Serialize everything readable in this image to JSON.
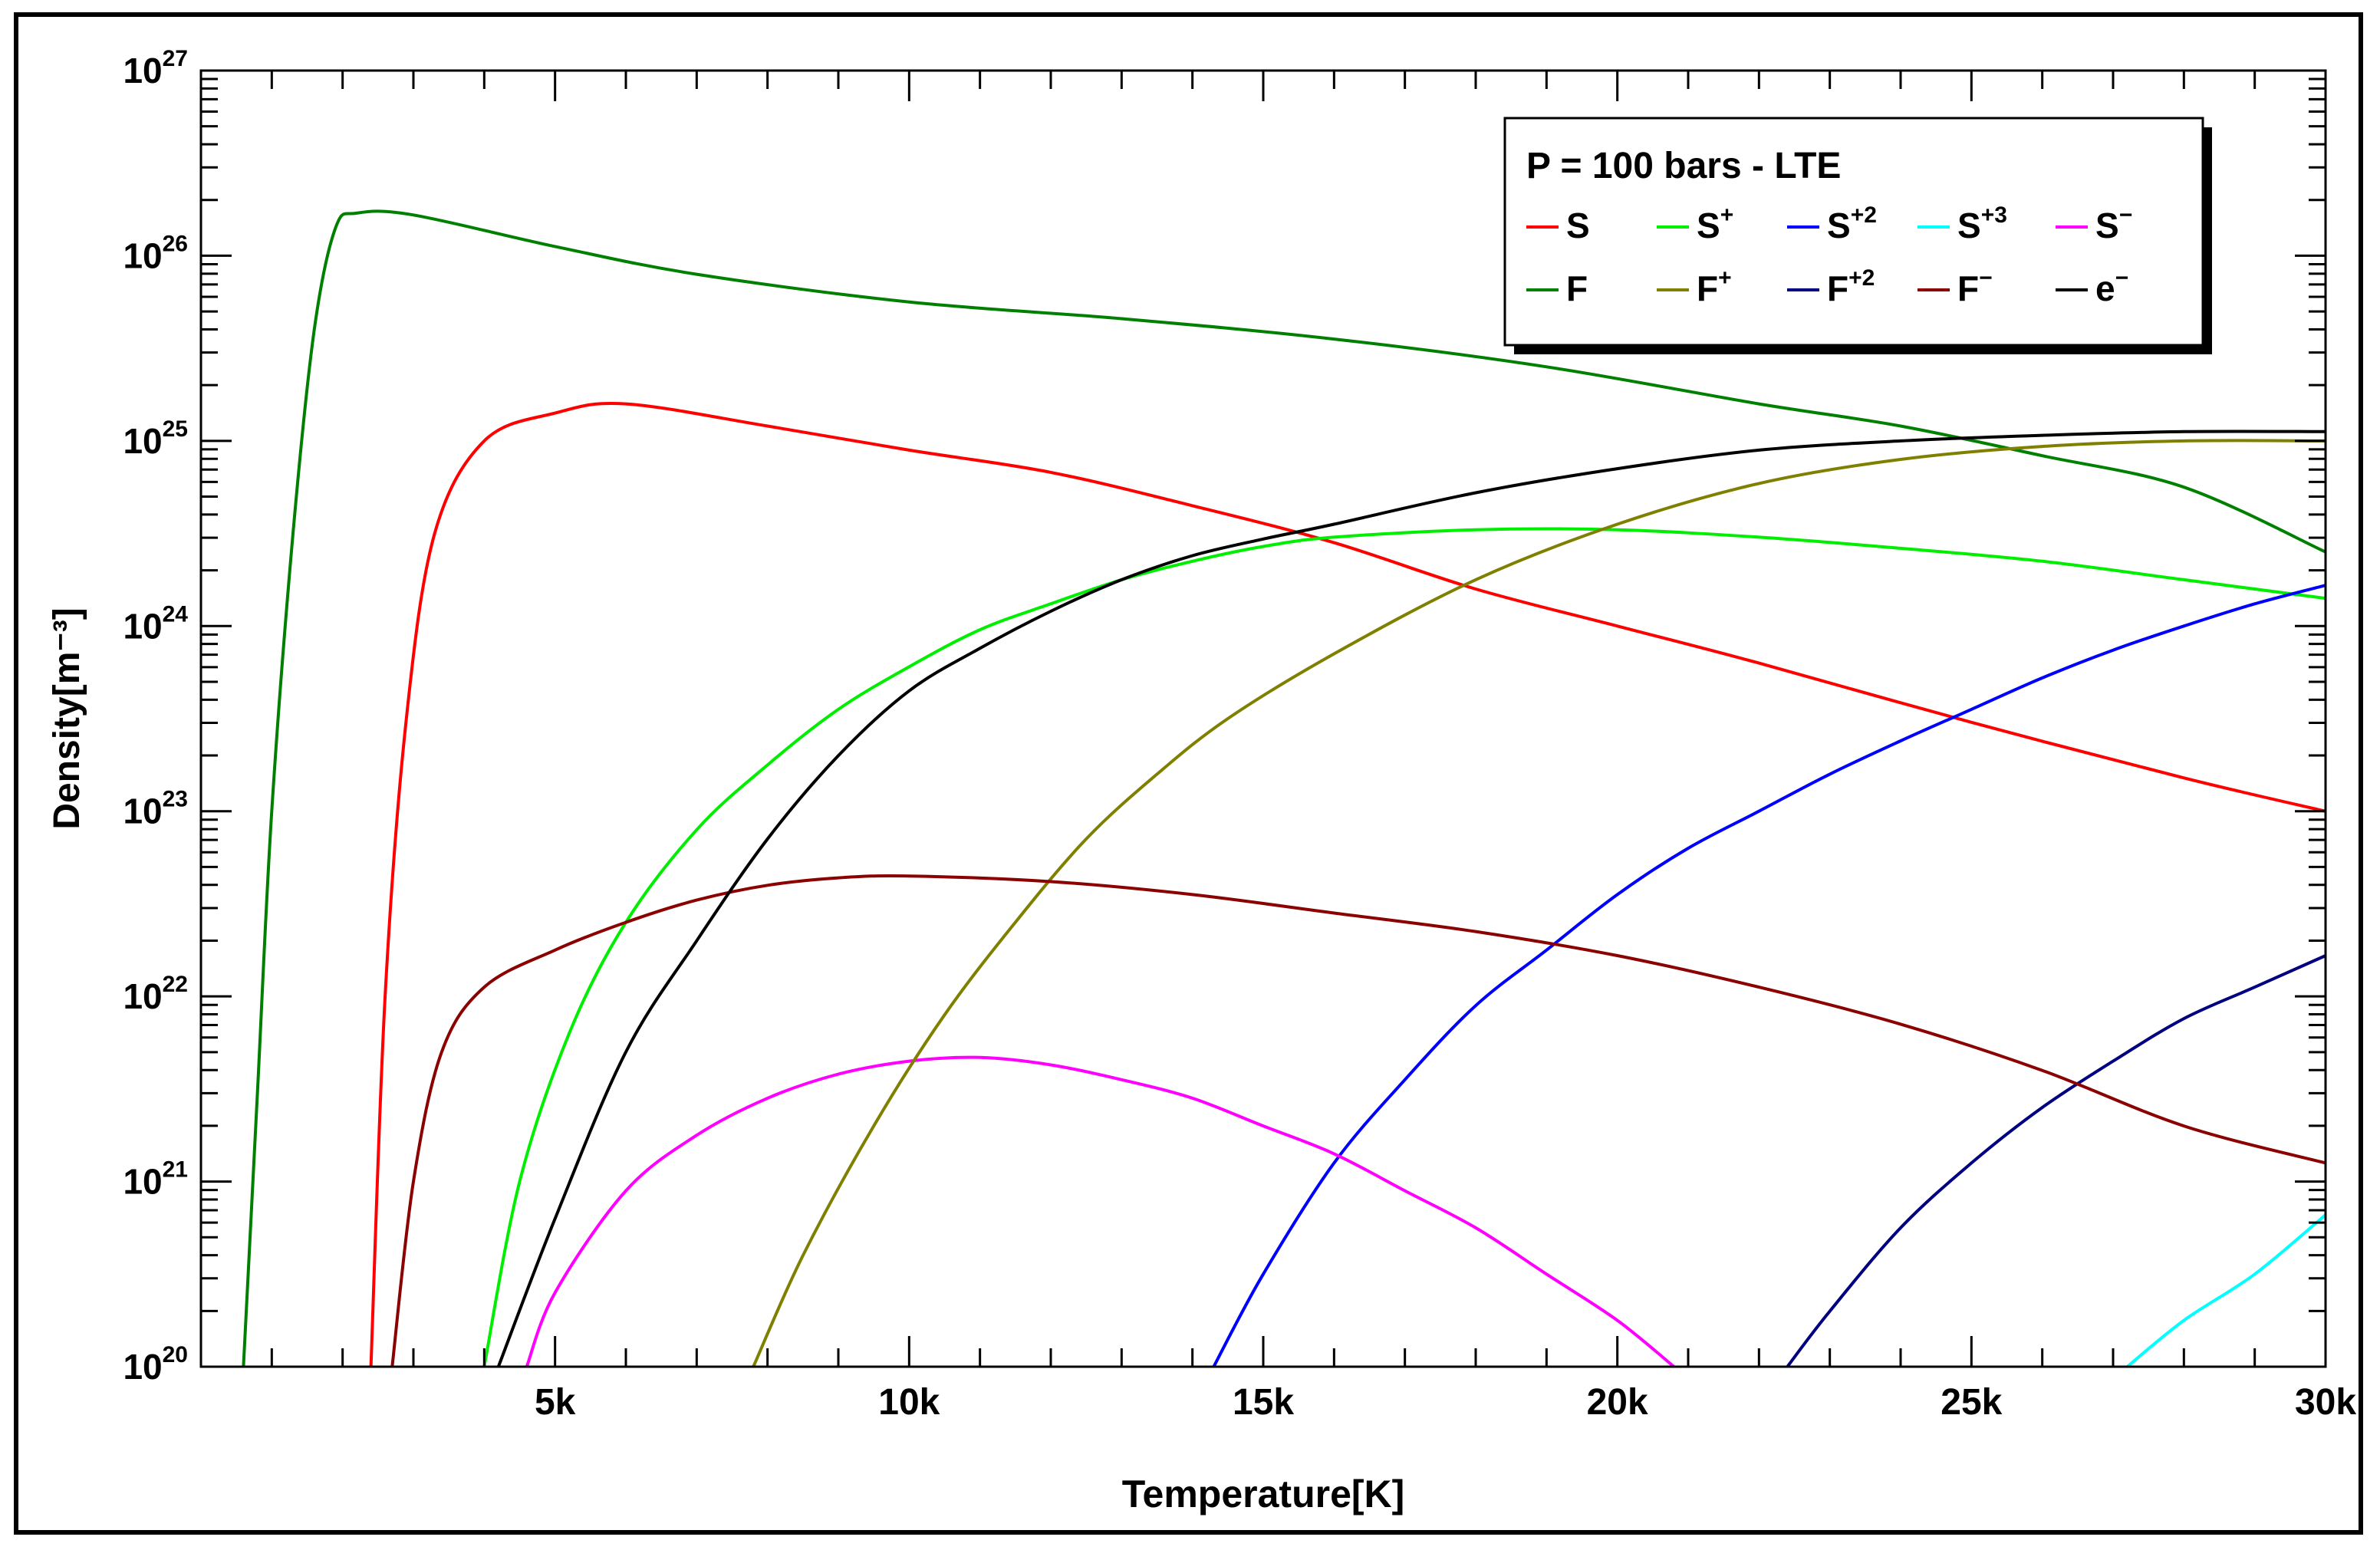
{
  "chart_data": {
    "type": "line",
    "title": "",
    "xlabel": "Temperature[K]",
    "ylabel": "Density[m⁻³]",
    "xlim": [
      0,
      30000
    ],
    "ylim_log10": [
      20,
      27
    ],
    "x_ticks": [
      {
        "value": 5000,
        "label": "5k"
      },
      {
        "value": 10000,
        "label": "10k"
      },
      {
        "value": 15000,
        "label": "15k"
      },
      {
        "value": 20000,
        "label": "20k"
      },
      {
        "value": 25000,
        "label": "25k"
      },
      {
        "value": 30000,
        "label": "30k"
      }
    ],
    "y_ticks": [
      {
        "exp": 20,
        "base": "10",
        "sup": "20"
      },
      {
        "exp": 21,
        "base": "10",
        "sup": "21"
      },
      {
        "exp": 22,
        "base": "10",
        "sup": "22"
      },
      {
        "exp": 23,
        "base": "10",
        "sup": "23"
      },
      {
        "exp": 24,
        "base": "10",
        "sup": "24"
      },
      {
        "exp": 25,
        "base": "10",
        "sup": "25"
      },
      {
        "exp": 26,
        "base": "10",
        "sup": "26"
      },
      {
        "exp": 27,
        "base": "10",
        "sup": "27"
      }
    ],
    "legend": {
      "title": "P = 100 bars - LTE",
      "position": "top-right"
    },
    "series": [
      {
        "name": "S",
        "base": "S",
        "sup": "",
        "color": "#ff0000",
        "points": [
          [
            2400,
            20
          ],
          [
            2600,
            22
          ],
          [
            2900,
            23.5
          ],
          [
            3300,
            24.5
          ],
          [
            4000,
            25.0
          ],
          [
            5000,
            25.15
          ],
          [
            6000,
            25.2
          ],
          [
            8000,
            25.08
          ],
          [
            10000,
            24.95
          ],
          [
            12000,
            24.83
          ],
          [
            14000,
            24.65
          ],
          [
            16000,
            24.45
          ],
          [
            18000,
            24.2
          ],
          [
            20000,
            24.0
          ],
          [
            22000,
            23.8
          ],
          [
            25000,
            23.48
          ],
          [
            28000,
            23.18
          ],
          [
            30000,
            23.0
          ]
        ]
      },
      {
        "name": "S+",
        "base": "S",
        "sup": "+",
        "color": "#00ee00",
        "points": [
          [
            4000,
            20
          ],
          [
            4500,
            21
          ],
          [
            5200,
            21.8
          ],
          [
            6000,
            22.4
          ],
          [
            7000,
            22.9
          ],
          [
            8000,
            23.25
          ],
          [
            9000,
            23.55
          ],
          [
            10000,
            23.78
          ],
          [
            11000,
            23.98
          ],
          [
            12000,
            24.12
          ],
          [
            13000,
            24.25
          ],
          [
            14000,
            24.35
          ],
          [
            15000,
            24.43
          ],
          [
            16000,
            24.48
          ],
          [
            18000,
            24.52
          ],
          [
            20000,
            24.52
          ],
          [
            22000,
            24.48
          ],
          [
            24000,
            24.42
          ],
          [
            26000,
            24.35
          ],
          [
            28000,
            24.25
          ],
          [
            30000,
            24.15
          ]
        ]
      },
      {
        "name": "S+2",
        "base": "S",
        "sup": "+2",
        "color": "#0000ff",
        "points": [
          [
            14300,
            20
          ],
          [
            15000,
            20.5
          ],
          [
            16000,
            21.1
          ],
          [
            17000,
            21.55
          ],
          [
            18000,
            21.95
          ],
          [
            19000,
            22.25
          ],
          [
            20000,
            22.55
          ],
          [
            21000,
            22.8
          ],
          [
            22000,
            23.0
          ],
          [
            23000,
            23.2
          ],
          [
            24000,
            23.38
          ],
          [
            25000,
            23.55
          ],
          [
            26000,
            23.72
          ],
          [
            27000,
            23.87
          ],
          [
            28000,
            24.0
          ],
          [
            29000,
            24.12
          ],
          [
            30000,
            24.22
          ]
        ]
      },
      {
        "name": "S+3",
        "base": "S",
        "sup": "+3",
        "color": "#00ffff",
        "points": [
          [
            27200,
            20
          ],
          [
            28000,
            20.25
          ],
          [
            29000,
            20.5
          ],
          [
            30000,
            20.82
          ]
        ]
      },
      {
        "name": "S-",
        "base": "S",
        "sup": "−",
        "color": "#ff00ff",
        "points": [
          [
            4600,
            20
          ],
          [
            5000,
            20.4
          ],
          [
            6000,
            20.95
          ],
          [
            7000,
            21.25
          ],
          [
            8000,
            21.45
          ],
          [
            9000,
            21.58
          ],
          [
            10000,
            21.65
          ],
          [
            11000,
            21.67
          ],
          [
            12000,
            21.63
          ],
          [
            13000,
            21.55
          ],
          [
            14000,
            21.45
          ],
          [
            15000,
            21.3
          ],
          [
            16000,
            21.15
          ],
          [
            17000,
            20.95
          ],
          [
            18000,
            20.75
          ],
          [
            19000,
            20.5
          ],
          [
            20000,
            20.25
          ],
          [
            20800,
            20
          ]
        ]
      },
      {
        "name": "F",
        "base": "F",
        "sup": "",
        "color": "#008000",
        "points": [
          [
            600,
            20
          ],
          [
            800,
            21.5
          ],
          [
            1000,
            23.0
          ],
          [
            1300,
            24.5
          ],
          [
            1600,
            25.6
          ],
          [
            1900,
            26.15
          ],
          [
            2200,
            26.23
          ],
          [
            3000,
            26.22
          ],
          [
            5000,
            26.05
          ],
          [
            7000,
            25.9
          ],
          [
            10000,
            25.75
          ],
          [
            13000,
            25.66
          ],
          [
            16000,
            25.55
          ],
          [
            19000,
            25.4
          ],
          [
            22000,
            25.2
          ],
          [
            24000,
            25.08
          ],
          [
            26000,
            24.92
          ],
          [
            28000,
            24.75
          ],
          [
            30000,
            24.4
          ]
        ]
      },
      {
        "name": "F+",
        "base": "F",
        "sup": "+",
        "color": "#808000",
        "points": [
          [
            7800,
            20
          ],
          [
            8500,
            20.6
          ],
          [
            9500,
            21.3
          ],
          [
            10500,
            21.9
          ],
          [
            11500,
            22.4
          ],
          [
            12500,
            22.85
          ],
          [
            13500,
            23.2
          ],
          [
            14500,
            23.5
          ],
          [
            16000,
            23.85
          ],
          [
            18000,
            24.25
          ],
          [
            20000,
            24.55
          ],
          [
            22000,
            24.77
          ],
          [
            24000,
            24.9
          ],
          [
            26000,
            24.97
          ],
          [
            28000,
            25.0
          ],
          [
            30000,
            25.0
          ]
        ]
      },
      {
        "name": "F+2",
        "base": "F",
        "sup": "+2",
        "color": "#000080",
        "points": [
          [
            22400,
            20
          ],
          [
            23000,
            20.3
          ],
          [
            24000,
            20.75
          ],
          [
            25000,
            21.1
          ],
          [
            26000,
            21.4
          ],
          [
            27000,
            21.65
          ],
          [
            28000,
            21.88
          ],
          [
            29000,
            22.05
          ],
          [
            30000,
            22.22
          ]
        ]
      },
      {
        "name": "F-",
        "base": "F",
        "sup": "−",
        "color": "#8b0000",
        "points": [
          [
            2700,
            20
          ],
          [
            3000,
            21.0
          ],
          [
            3400,
            21.7
          ],
          [
            4000,
            22.05
          ],
          [
            5000,
            22.25
          ],
          [
            6000,
            22.4
          ],
          [
            7000,
            22.52
          ],
          [
            8000,
            22.6
          ],
          [
            9000,
            22.64
          ],
          [
            10000,
            22.65
          ],
          [
            12000,
            22.62
          ],
          [
            14000,
            22.55
          ],
          [
            16000,
            22.45
          ],
          [
            18000,
            22.35
          ],
          [
            20000,
            22.22
          ],
          [
            22000,
            22.05
          ],
          [
            24000,
            21.85
          ],
          [
            26000,
            21.6
          ],
          [
            28000,
            21.3
          ],
          [
            30000,
            21.1
          ]
        ]
      },
      {
        "name": "e-",
        "base": "e",
        "sup": "−",
        "color": "#000000",
        "points": [
          [
            4200,
            20
          ],
          [
            5000,
            20.8
          ],
          [
            6000,
            21.7
          ],
          [
            7000,
            22.3
          ],
          [
            8000,
            22.85
          ],
          [
            9000,
            23.3
          ],
          [
            10000,
            23.65
          ],
          [
            11000,
            23.88
          ],
          [
            12000,
            24.08
          ],
          [
            13000,
            24.25
          ],
          [
            14000,
            24.38
          ],
          [
            15000,
            24.47
          ],
          [
            16000,
            24.55
          ],
          [
            18000,
            24.72
          ],
          [
            20000,
            24.85
          ],
          [
            22000,
            24.95
          ],
          [
            24000,
            25.0
          ],
          [
            26000,
            25.03
          ],
          [
            28000,
            25.05
          ],
          [
            30000,
            25.05
          ]
        ]
      }
    ]
  }
}
